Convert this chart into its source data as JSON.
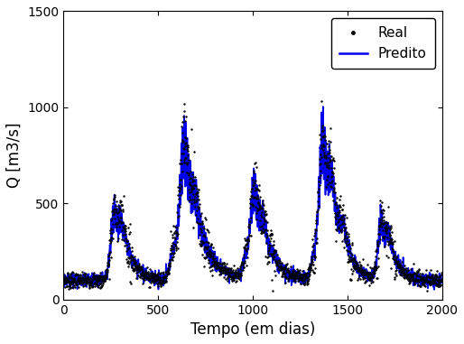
{
  "xlabel": "Tempo (em dias)",
  "ylabel": "Q [m3/s]",
  "xlim": [
    0,
    2000
  ],
  "ylim": [
    0,
    1500
  ],
  "xticks": [
    0,
    500,
    1000,
    1500,
    2000
  ],
  "yticks": [
    0,
    500,
    1000,
    1500
  ],
  "legend_real": "Real",
  "legend_predito": "Predito",
  "line_color": "#0000ee",
  "dot_color": "#000000",
  "background_color": "#ffffff",
  "line_width": 1.2,
  "dot_size": 3,
  "figsize": [
    5.14,
    3.81
  ],
  "dpi": 100
}
